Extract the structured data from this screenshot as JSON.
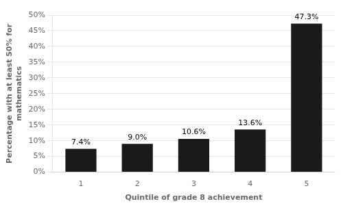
{
  "chart_data": {
    "type": "bar",
    "categories": [
      "1",
      "2",
      "3",
      "4",
      "5"
    ],
    "values": [
      7.4,
      9.0,
      10.6,
      13.6,
      47.3
    ],
    "value_labels": [
      "7.4%",
      "9.0%",
      "10.6%",
      "13.6%",
      "47.3%"
    ],
    "color": "#1a1a1a",
    "xlabel": "Quintile of grade 8 achievement",
    "ylabel": "Percentage with at least 50% for\nmathematics",
    "ylim": [
      0,
      50
    ],
    "yticks": [
      {
        "value": 0,
        "label": "0%"
      },
      {
        "value": 5,
        "label": "5%"
      },
      {
        "value": 10,
        "label": "10%"
      },
      {
        "value": 15,
        "label": "15%"
      },
      {
        "value": 20,
        "label": "20%"
      },
      {
        "value": 25,
        "label": "25%"
      },
      {
        "value": 30,
        "label": "30%"
      },
      {
        "value": 35,
        "label": "35%"
      },
      {
        "value": 40,
        "label": "40%"
      },
      {
        "value": 45,
        "label": "45%"
      },
      {
        "value": 50,
        "label": "50%"
      }
    ],
    "grid": true,
    "data_labels": true
  }
}
